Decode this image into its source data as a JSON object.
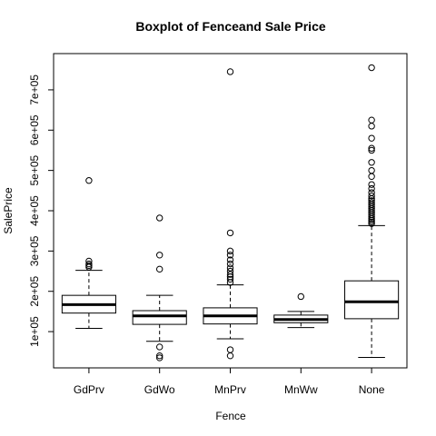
{
  "chart_data": {
    "type": "boxplot",
    "title": "Boxplot of Fenceand Sale Price",
    "xlabel": "Fence",
    "ylabel": "SalePrice",
    "categories": [
      "GdPrv",
      "GdWo",
      "MnPrv",
      "MnWw",
      "None"
    ],
    "y_ticks": [
      {
        "value": 100000,
        "label": "1e+05"
      },
      {
        "value": 200000,
        "label": "2e+05"
      },
      {
        "value": 300000,
        "label": "3e+05"
      },
      {
        "value": 400000,
        "label": "4e+05"
      },
      {
        "value": 500000,
        "label": "5e+05"
      },
      {
        "value": 600000,
        "label": "6e+05"
      },
      {
        "value": 700000,
        "label": "7e+05"
      }
    ],
    "ylim": [
      10000,
      790000
    ],
    "grid": false,
    "legend": "none",
    "boxes": [
      {
        "category": "GdPrv",
        "whisker_low": 108000,
        "q1": 146000,
        "median": 167000,
        "q3": 190000,
        "whisker_high": 252000,
        "outliers": [
          260000,
          264000,
          268000,
          275000,
          475000
        ]
      },
      {
        "category": "GdWo",
        "whisker_low": 76000,
        "q1": 118000,
        "median": 139000,
        "q3": 152000,
        "whisker_high": 190000,
        "outliers": [
          35000,
          40000,
          62000,
          255000,
          290000,
          382000
        ]
      },
      {
        "category": "MnPrv",
        "whisker_low": 82000,
        "q1": 119000,
        "median": 139000,
        "q3": 159000,
        "whisker_high": 216000,
        "outliers": [
          40000,
          55000,
          222000,
          230000,
          236000,
          242000,
          250000,
          258000,
          268000,
          278000,
          290000,
          300000,
          345000,
          745000
        ]
      },
      {
        "category": "MnWw",
        "whisker_low": 110000,
        "q1": 122000,
        "median": 130000,
        "q3": 141000,
        "whisker_high": 150000,
        "outliers": [
          187000
        ]
      },
      {
        "category": "None",
        "whisker_low": 36000,
        "q1": 132000,
        "median": 174000,
        "q3": 226000,
        "whisker_high": 363000,
        "outliers": [
          368000,
          372000,
          376000,
          380000,
          385000,
          390000,
          395000,
          400000,
          405000,
          410000,
          415000,
          420000,
          425000,
          430000,
          437000,
          445000,
          455000,
          465000,
          485000,
          500000,
          520000,
          550000,
          555000,
          580000,
          610000,
          625000,
          755000
        ]
      }
    ]
  }
}
